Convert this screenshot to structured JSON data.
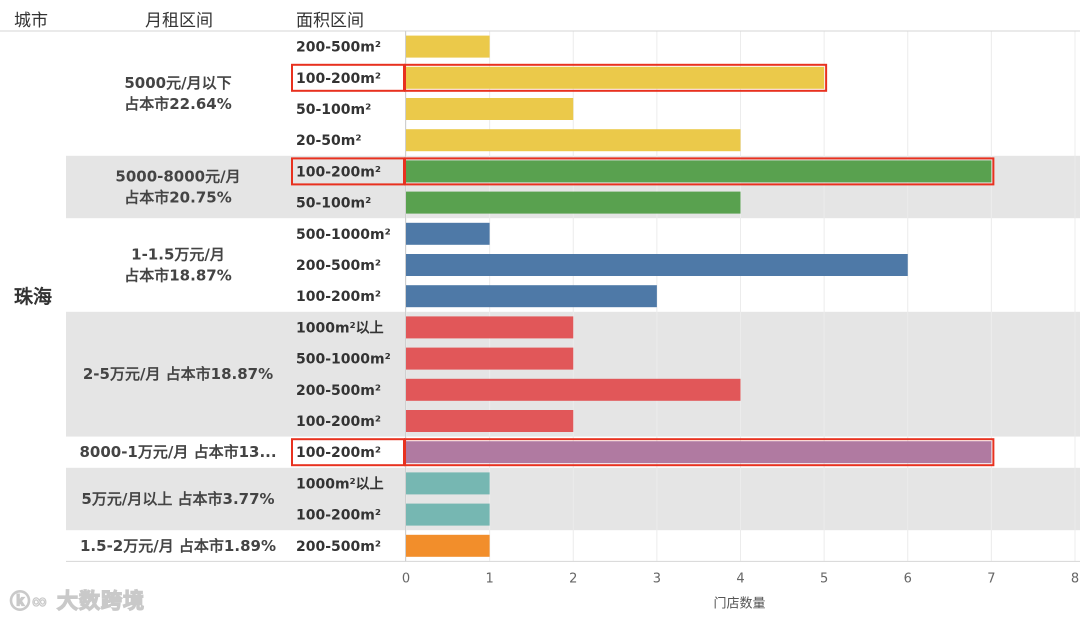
{
  "headers": {
    "city": "城市",
    "rent": "月租区间",
    "area": "面积区间"
  },
  "city": "珠海",
  "watermark": "大数跨境",
  "chart_data": {
    "type": "bar",
    "orientation": "horizontal",
    "xlabel": "门店数量",
    "xlim": [
      0,
      8
    ],
    "xticks": [
      0,
      1,
      2,
      3,
      4,
      5,
      6,
      7,
      8
    ],
    "grid": true,
    "groups": [
      {
        "label_lines": [
          "5000元/月以下",
          "占本市22.64%"
        ],
        "color": "#EBC94A",
        "shaded": false,
        "rows": [
          {
            "area": "200-500m²",
            "value": 1
          },
          {
            "area": "100-200m²",
            "value": 5,
            "highlight": true
          },
          {
            "area": "50-100m²",
            "value": 2
          },
          {
            "area": "20-50m²",
            "value": 4
          }
        ]
      },
      {
        "label_lines": [
          "5000-8000元/月",
          "占本市20.75%"
        ],
        "color": "#59A14F",
        "shaded": true,
        "rows": [
          {
            "area": "100-200m²",
            "value": 7,
            "highlight": true
          },
          {
            "area": "50-100m²",
            "value": 4
          }
        ]
      },
      {
        "label_lines": [
          "1-1.5万元/月",
          "占本市18.87%"
        ],
        "color": "#4E79A7",
        "shaded": false,
        "rows": [
          {
            "area": "500-1000m²",
            "value": 1
          },
          {
            "area": "200-500m²",
            "value": 6
          },
          {
            "area": "100-200m²",
            "value": 3
          }
        ]
      },
      {
        "label_lines": [
          "2-5万元/月  占本市18.87%"
        ],
        "color": "#E15759",
        "shaded": true,
        "rows": [
          {
            "area": "1000m²以上",
            "value": 2
          },
          {
            "area": "500-1000m²",
            "value": 2
          },
          {
            "area": "200-500m²",
            "value": 4
          },
          {
            "area": "100-200m²",
            "value": 2
          }
        ]
      },
      {
        "label_lines": [
          "8000-1万元/月  占本市13..."
        ],
        "color": "#B07AA1",
        "shaded": false,
        "rows": [
          {
            "area": "100-200m²",
            "value": 7,
            "highlight": true
          }
        ]
      },
      {
        "label_lines": [
          "5万元/月以上  占本市3.77%"
        ],
        "color": "#76B7B2",
        "shaded": true,
        "rows": [
          {
            "area": "1000m²以上",
            "value": 1
          },
          {
            "area": "100-200m²",
            "value": 1
          }
        ]
      },
      {
        "label_lines": [
          "1.5-2万元/月  占本市1.89%"
        ],
        "color": "#F28E2B",
        "shaded": false,
        "rows": [
          {
            "area": "200-500m²",
            "value": 1
          }
        ]
      }
    ]
  }
}
